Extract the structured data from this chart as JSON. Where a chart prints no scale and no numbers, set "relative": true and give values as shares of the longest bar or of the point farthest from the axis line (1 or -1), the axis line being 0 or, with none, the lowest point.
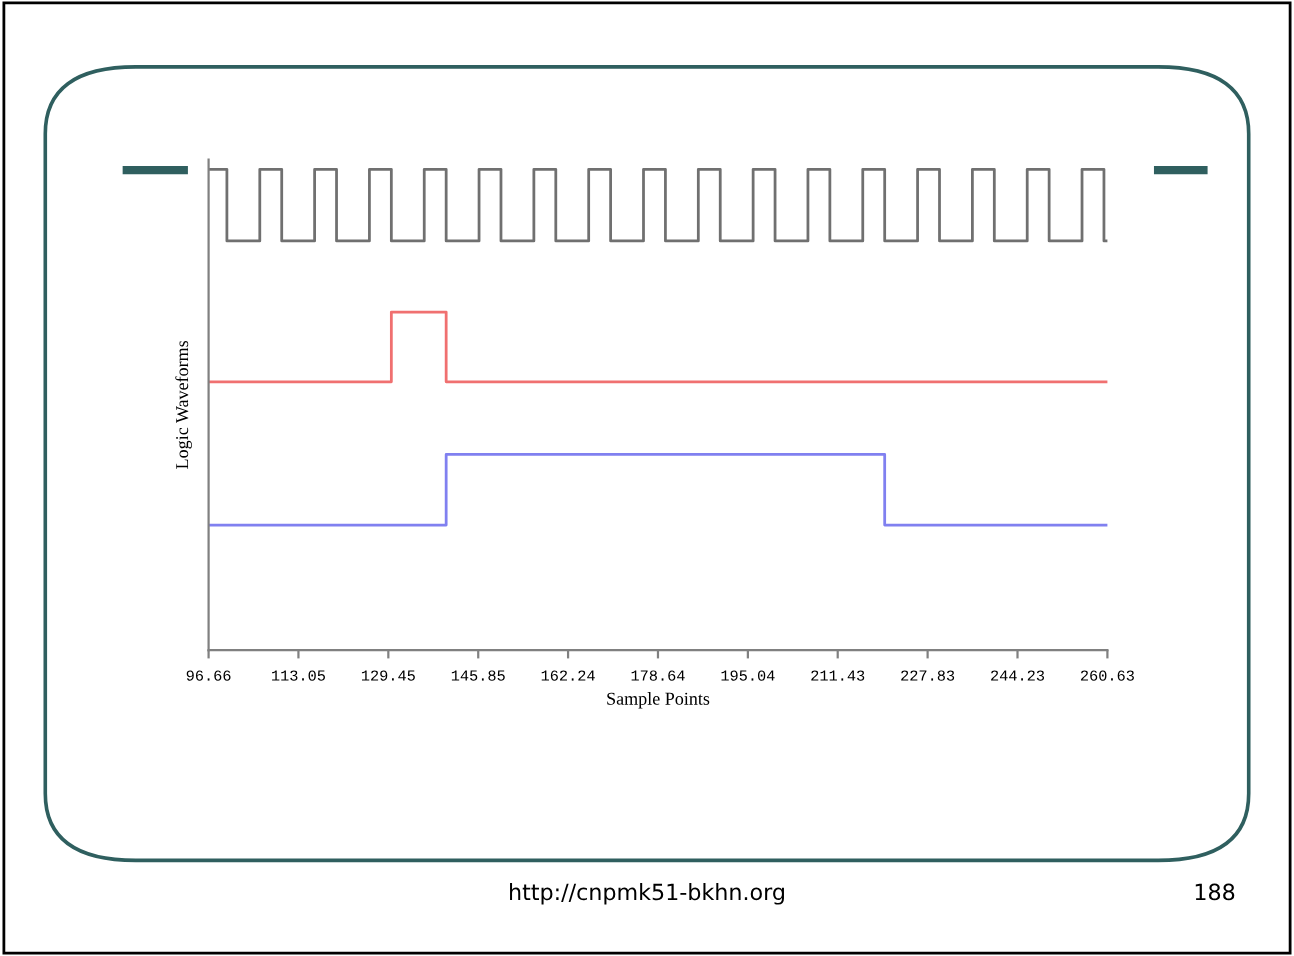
{
  "chart_data": {
    "type": "step",
    "relative": true,
    "xlabel": "Sample Points",
    "ylabel": "Logic Waveforms",
    "xlim": [
      96.66,
      260.63
    ],
    "xticks": [
      96.66,
      113.05,
      129.45,
      145.85,
      162.24,
      178.64,
      195.04,
      211.43,
      227.83,
      244.23,
      260.63
    ],
    "grid": false,
    "legend": false,
    "line_style": "solid",
    "marker": "none",
    "series": [
      {
        "color": "#707070",
        "x": [
          96.66,
          100,
          106,
          110,
          116,
          120,
          126,
          130,
          136,
          140,
          146,
          150,
          156,
          160,
          166,
          170,
          176,
          180,
          186,
          190,
          196,
          200,
          206,
          210,
          216,
          220,
          226,
          230,
          236,
          240,
          246,
          250,
          256,
          260,
          260.63
        ],
        "values": [
          1,
          0.851,
          1,
          0.851,
          1,
          0.851,
          1,
          0.851,
          1,
          0.851,
          1,
          0.851,
          1,
          0.851,
          1,
          0.851,
          1,
          0.851,
          1,
          0.851,
          1,
          0.851,
          1,
          0.851,
          1,
          0.851,
          1,
          0.851,
          1,
          0.851,
          1,
          0.851,
          1,
          0.851,
          0.851
        ]
      },
      {
        "color": "#f07070",
        "x": [
          96.66,
          130,
          140,
          260.63
        ],
        "values": [
          0.558,
          0.703,
          0.558,
          0.558
        ]
      },
      {
        "color": "#8080f0",
        "x": [
          96.66,
          140,
          220,
          260.63
        ],
        "values": [
          0.26,
          0.407,
          0.26,
          0.26
        ]
      }
    ],
    "annotations": [
      "http://cnpmk51-bkhn.org",
      "188"
    ]
  }
}
